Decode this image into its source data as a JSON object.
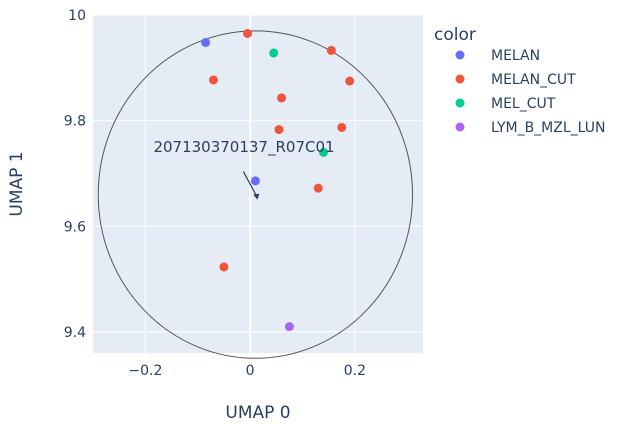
{
  "chart_data": {
    "type": "scatter",
    "xlabel": "UMAP 0",
    "ylabel": "UMAP 1",
    "xlim": [
      -0.3,
      0.33
    ],
    "ylim": [
      9.36,
      10.0
    ],
    "xticks": [
      -0.2,
      0,
      0.2
    ],
    "xtick_labels": [
      "−0.2",
      "0",
      "0.2"
    ],
    "yticks": [
      9.4,
      9.6,
      9.8,
      10
    ],
    "ytick_labels": [
      "9.4",
      "9.6",
      "9.8",
      "10"
    ],
    "grid": true,
    "legend": {
      "title": "color",
      "placement": "right"
    },
    "series": [
      {
        "name": "MELAN",
        "color": "#636efa",
        "points": [
          [
            -0.085,
            9.948
          ],
          [
            0.01,
            9.686
          ]
        ]
      },
      {
        "name": "MELAN_CUT",
        "color": "#ef553b",
        "points": [
          [
            -0.005,
            9.965
          ],
          [
            0.155,
            9.933
          ],
          [
            -0.07,
            9.877
          ],
          [
            0.19,
            9.875
          ],
          [
            0.06,
            9.843
          ],
          [
            0.055,
            9.783
          ],
          [
            0.175,
            9.787
          ],
          [
            0.13,
            9.672
          ],
          [
            -0.05,
            9.523
          ]
        ]
      },
      {
        "name": "MEL_CUT",
        "color": "#00cc96",
        "points": [
          [
            0.045,
            9.928
          ],
          [
            0.14,
            9.74
          ]
        ]
      },
      {
        "name": "LYM_B_MZL_LUN",
        "color": "#ab63fa",
        "points": [
          [
            0.075,
            9.41
          ]
        ]
      }
    ],
    "circle": {
      "center": [
        0.01,
        9.66
      ],
      "radius_x": 0.3,
      "radius_y": 0.31
    },
    "annotation": {
      "text": "207130370137_R07C01",
      "point": [
        0.01,
        9.66
      ]
    }
  }
}
